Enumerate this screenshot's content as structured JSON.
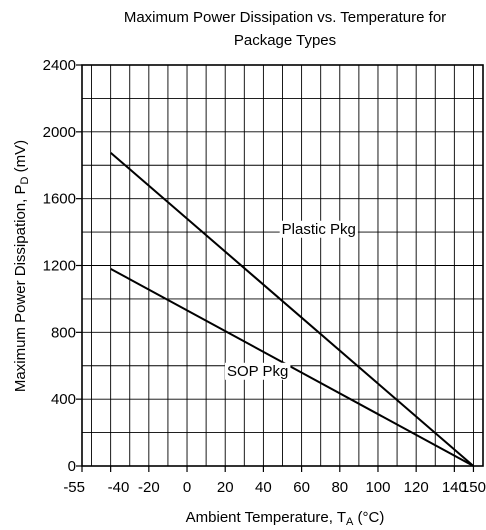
{
  "chart_data": {
    "type": "line",
    "title": "Maximum Power Dissipation vs. Temperature for Package Types",
    "title_lines": [
      "Maximum Power Dissipation vs. Temperature for",
      "Package Types"
    ],
    "xlabel": {
      "main": "Ambient Temperature, T",
      "sub": "A",
      "suffix": " (°C)"
    },
    "ylabel": {
      "main": "Maximum Power Dissipation, P",
      "sub": "D",
      "suffix": " (mV)"
    },
    "xlim": [
      -55,
      155
    ],
    "ylim": [
      0,
      2400
    ],
    "x_ticks": [
      {
        "value": -55,
        "label": "-55"
      },
      {
        "value": -40,
        "label": "-40"
      },
      {
        "value": -20,
        "label": "-20"
      },
      {
        "value": 0,
        "label": "0"
      },
      {
        "value": 20,
        "label": "20"
      },
      {
        "value": 40,
        "label": "40"
      },
      {
        "value": 60,
        "label": "60"
      },
      {
        "value": 80,
        "label": "80"
      },
      {
        "value": 100,
        "label": "100"
      },
      {
        "value": 120,
        "label": "120"
      },
      {
        "value": 140,
        "label": "140"
      },
      {
        "value": 150,
        "label": "150"
      }
    ],
    "y_ticks": [
      0,
      400,
      800,
      1200,
      1600,
      2000,
      2400
    ],
    "grid": true,
    "series": [
      {
        "name": "Plastic Pkg",
        "x": [
          -40,
          150
        ],
        "y": [
          1875,
          0
        ]
      },
      {
        "name": "SOP Pkg",
        "x": [
          -40,
          150
        ],
        "y": [
          1180,
          0
        ]
      }
    ],
    "annotations": [
      {
        "text": "Plastic Pkg",
        "x": 69,
        "y": 1390
      },
      {
        "text": "SOP Pkg",
        "x": 37,
        "y": 540
      }
    ]
  }
}
